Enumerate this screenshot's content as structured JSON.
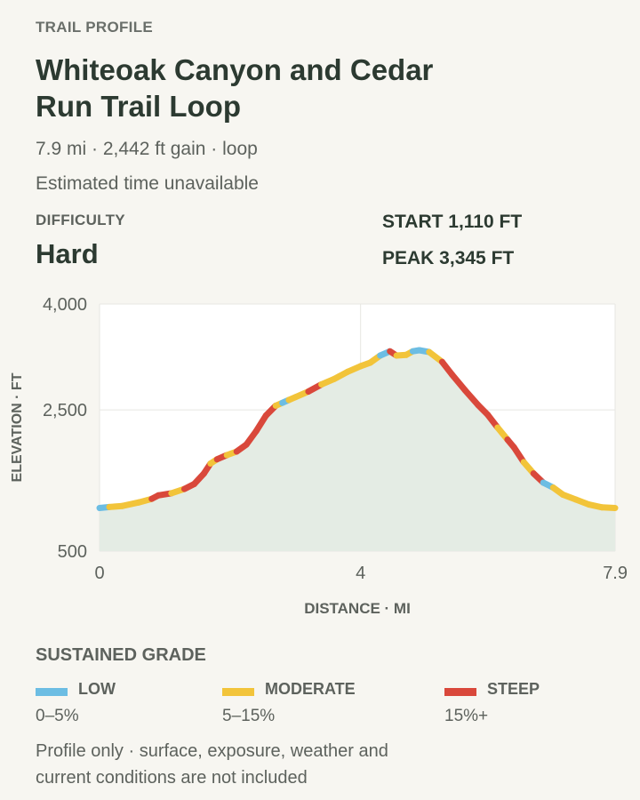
{
  "header": {
    "eyebrow": "TRAIL PROFILE",
    "title": "Whiteoak Canyon and Cedar Run Trail Loop",
    "stats": "7.9 mi · 2,442 ft gain · loop",
    "time_note": "Estimated time unavailable"
  },
  "difficulty": {
    "label": "DIFFICULTY",
    "value": "Hard"
  },
  "elevation": {
    "start": "START 1,110 FT",
    "peak": "PEAK 3,345 FT"
  },
  "colors": {
    "low": "#6cbde3",
    "moderate": "#f2c43a",
    "steep": "#d9483b",
    "fill": "#e4ece4"
  },
  "chart_data": {
    "type": "area",
    "xlabel": "DISTANCE · MI",
    "ylabel": "ELEVATION · FT",
    "xlim": [
      0,
      7.9
    ],
    "ylim": [
      500,
      4000
    ],
    "xticks": [
      "0",
      "4",
      "7.9"
    ],
    "xtick_values": [
      0,
      4,
      7.9
    ],
    "yticks": [
      "4,000",
      "2,500",
      "500"
    ],
    "ytick_values": [
      4000,
      2500,
      500
    ],
    "grid": true,
    "points": [
      [
        0.0,
        1110,
        "moderate"
      ],
      [
        0.15,
        1125,
        "low"
      ],
      [
        0.35,
        1140,
        "moderate"
      ],
      [
        0.6,
        1190,
        "moderate"
      ],
      [
        0.8,
        1240,
        "moderate"
      ],
      [
        0.9,
        1290,
        "steep"
      ],
      [
        1.1,
        1320,
        "steep"
      ],
      [
        1.3,
        1380,
        "moderate"
      ],
      [
        1.45,
        1450,
        "steep"
      ],
      [
        1.6,
        1600,
        "steep"
      ],
      [
        1.7,
        1740,
        "steep"
      ],
      [
        1.8,
        1800,
        "moderate"
      ],
      [
        1.95,
        1860,
        "steep"
      ],
      [
        2.1,
        1910,
        "moderate"
      ],
      [
        2.25,
        2010,
        "steep"
      ],
      [
        2.4,
        2200,
        "steep"
      ],
      [
        2.55,
        2420,
        "steep"
      ],
      [
        2.7,
        2560,
        "steep"
      ],
      [
        2.8,
        2600,
        "moderate"
      ],
      [
        2.9,
        2640,
        "low"
      ],
      [
        3.0,
        2680,
        "moderate"
      ],
      [
        3.2,
        2760,
        "moderate"
      ],
      [
        3.4,
        2860,
        "steep"
      ],
      [
        3.6,
        2940,
        "moderate"
      ],
      [
        3.8,
        3040,
        "moderate"
      ],
      [
        4.0,
        3120,
        "moderate"
      ],
      [
        4.15,
        3170,
        "moderate"
      ],
      [
        4.3,
        3270,
        "moderate"
      ],
      [
        4.45,
        3330,
        "low"
      ],
      [
        4.55,
        3270,
        "steep"
      ],
      [
        4.7,
        3280,
        "moderate"
      ],
      [
        4.8,
        3330,
        "moderate"
      ],
      [
        4.9,
        3345,
        "low"
      ],
      [
        5.05,
        3320,
        "low"
      ],
      [
        5.25,
        3180,
        "moderate"
      ],
      [
        5.4,
        3000,
        "steep"
      ],
      [
        5.6,
        2780,
        "steep"
      ],
      [
        5.8,
        2570,
        "steep"
      ],
      [
        5.95,
        2430,
        "steep"
      ],
      [
        6.1,
        2250,
        "steep"
      ],
      [
        6.25,
        2080,
        "moderate"
      ],
      [
        6.35,
        1970,
        "steep"
      ],
      [
        6.5,
        1760,
        "steep"
      ],
      [
        6.65,
        1600,
        "moderate"
      ],
      [
        6.8,
        1470,
        "steep"
      ],
      [
        6.95,
        1400,
        "low"
      ],
      [
        7.1,
        1300,
        "moderate"
      ],
      [
        7.3,
        1230,
        "moderate"
      ],
      [
        7.5,
        1160,
        "moderate"
      ],
      [
        7.7,
        1120,
        "moderate"
      ],
      [
        7.9,
        1110,
        "moderate"
      ]
    ]
  },
  "legend": {
    "title": "SUSTAINED GRADE",
    "items": [
      {
        "name": "LOW",
        "range": "0–5%",
        "color": "#6cbde3"
      },
      {
        "name": "MODERATE",
        "range": "5–15%",
        "color": "#f2c43a"
      },
      {
        "name": "STEEP",
        "range": "15%+",
        "color": "#d9483b"
      }
    ]
  },
  "note": "Profile only · surface, exposure, weather and current conditions are not included"
}
